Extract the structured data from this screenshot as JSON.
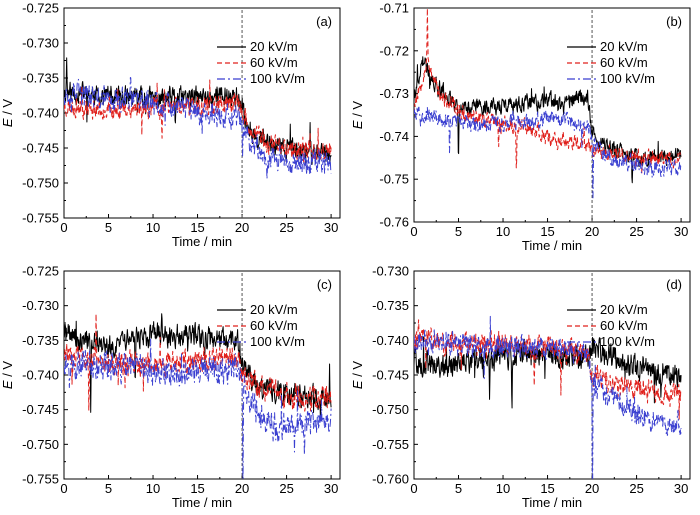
{
  "chart_data": [
    {
      "panel": "(a)",
      "type": "line",
      "xlabel": "Time / min",
      "ylabel": "E / V",
      "xlim": [
        0,
        31
      ],
      "ylim": [
        -0.755,
        -0.725
      ],
      "xticks": [
        0,
        5,
        10,
        15,
        20,
        25,
        30
      ],
      "xtick_labels": [
        "0",
        "5",
        "10",
        "15",
        "20",
        "25",
        "30"
      ],
      "yticks": [
        -0.755,
        -0.75,
        -0.745,
        -0.74,
        -0.735,
        -0.73,
        -0.725
      ],
      "ytick_labels": [
        "-0.755",
        "-0.750",
        "-0.745",
        "-0.740",
        "-0.735",
        "-0.730",
        "-0.725"
      ],
      "marker_line_x": 20,
      "legend": [
        "20 kV/m",
        "60 kV/m",
        "100 kV/m"
      ],
      "series": [
        {
          "name": "20 kV/m",
          "color": "#000000",
          "dash": "",
          "seed": 11,
          "noise": 0.0014,
          "spikes": [
            [
              0.3,
              0.005
            ],
            [
              12.5,
              -0.004
            ],
            [
              17.2,
              0.003
            ]
          ],
          "knots": [
            [
              0,
              -0.737
            ],
            [
              5,
              -0.7375
            ],
            [
              10,
              -0.738
            ],
            [
              15,
              -0.7378
            ],
            [
              19.5,
              -0.7375
            ],
            [
              20,
              -0.74
            ],
            [
              21,
              -0.7425
            ],
            [
              23,
              -0.7445
            ],
            [
              27,
              -0.7455
            ],
            [
              30,
              -0.7458
            ]
          ]
        },
        {
          "name": "60 kV/m",
          "color": "#e0201c",
          "dash": "5,3",
          "seed": 23,
          "noise": 0.0013,
          "spikes": [
            [
              2.0,
              0.004
            ],
            [
              11.0,
              -0.004
            ]
          ],
          "knots": [
            [
              0,
              -0.739
            ],
            [
              5,
              -0.7395
            ],
            [
              10,
              -0.7392
            ],
            [
              15,
              -0.739
            ],
            [
              19.5,
              -0.7385
            ],
            [
              20,
              -0.74
            ],
            [
              21,
              -0.7425
            ],
            [
              23,
              -0.7445
            ],
            [
              27,
              -0.7455
            ],
            [
              30,
              -0.7452
            ]
          ]
        },
        {
          "name": "100 kV/m",
          "color": "#3a3fd0",
          "dash": "8,3,2,3",
          "seed": 37,
          "noise": 0.0016,
          "spikes": [
            [
              7.5,
              0.004
            ],
            [
              20.05,
              -0.006
            ],
            [
              22.8,
              -0.003
            ]
          ],
          "knots": [
            [
              0,
              -0.737
            ],
            [
              5,
              -0.738
            ],
            [
              10,
              -0.7385
            ],
            [
              15,
              -0.74
            ],
            [
              19.5,
              -0.741
            ],
            [
              20,
              -0.742
            ],
            [
              21,
              -0.744
            ],
            [
              23,
              -0.7465
            ],
            [
              27,
              -0.747
            ],
            [
              30,
              -0.7468
            ]
          ]
        }
      ]
    },
    {
      "panel": "(b)",
      "type": "line",
      "xlabel": "Time / min",
      "ylabel": "E / V",
      "xlim": [
        0,
        31
      ],
      "ylim": [
        -0.76,
        -0.71
      ],
      "xticks": [
        0,
        5,
        10,
        15,
        20,
        25,
        30
      ],
      "xtick_labels": [
        "0",
        "5",
        "10",
        "15",
        "20",
        "25",
        "30"
      ],
      "yticks": [
        -0.76,
        -0.75,
        -0.74,
        -0.73,
        -0.72,
        -0.71
      ],
      "ytick_labels": [
        "-0.76",
        "-0.75",
        "-0.74",
        "-0.73",
        "-0.72",
        "-0.71"
      ],
      "marker_line_x": 20,
      "legend": [
        "20 kV/m",
        "60 kV/m",
        "100 kV/m"
      ],
      "series": [
        {
          "name": "20 kV/m",
          "color": "#000000",
          "dash": "",
          "seed": 41,
          "noise": 0.0018,
          "spikes": [
            [
              5.0,
              -0.014
            ],
            [
              24.5,
              -0.01
            ]
          ],
          "knots": [
            [
              0,
              -0.731
            ],
            [
              1,
              -0.722
            ],
            [
              2,
              -0.727
            ],
            [
              5,
              -0.733
            ],
            [
              10,
              -0.733
            ],
            [
              15,
              -0.732
            ],
            [
              19.5,
              -0.731
            ],
            [
              20,
              -0.738
            ],
            [
              21,
              -0.742
            ],
            [
              25,
              -0.745
            ],
            [
              30,
              -0.7445
            ]
          ]
        },
        {
          "name": "60 kV/m",
          "color": "#e0201c",
          "dash": "5,3",
          "seed": 53,
          "noise": 0.0017,
          "spikes": [
            [
              1.5,
              0.012
            ],
            [
              9.5,
              -0.009
            ],
            [
              11.5,
              -0.01
            ]
          ],
          "knots": [
            [
              0,
              -0.733
            ],
            [
              1.5,
              -0.722
            ],
            [
              3,
              -0.731
            ],
            [
              6,
              -0.735
            ],
            [
              10,
              -0.737
            ],
            [
              13,
              -0.738
            ],
            [
              16,
              -0.741
            ],
            [
              19.5,
              -0.742
            ],
            [
              20,
              -0.743
            ],
            [
              25,
              -0.745
            ],
            [
              30,
              -0.7455
            ]
          ]
        },
        {
          "name": "100 kV/m",
          "color": "#3a3fd0",
          "dash": "8,3,2,3",
          "seed": 67,
          "noise": 0.0017,
          "spikes": [
            [
              4.0,
              -0.008
            ],
            [
              20.1,
              -0.012
            ]
          ],
          "knots": [
            [
              0,
              -0.734
            ],
            [
              3,
              -0.736
            ],
            [
              7,
              -0.737
            ],
            [
              12,
              -0.7365
            ],
            [
              16,
              -0.736
            ],
            [
              19.5,
              -0.7375
            ],
            [
              20,
              -0.741
            ],
            [
              22,
              -0.745
            ],
            [
              26,
              -0.747
            ],
            [
              30,
              -0.7475
            ]
          ]
        }
      ]
    },
    {
      "panel": "(c)",
      "type": "line",
      "xlabel": "Time / min",
      "ylabel": "E / V",
      "xlim": [
        0,
        31
      ],
      "ylim": [
        -0.755,
        -0.725
      ],
      "xticks": [
        0,
        5,
        10,
        15,
        20,
        25,
        30
      ],
      "xtick_labels": [
        "0",
        "5",
        "10",
        "15",
        "20",
        "25",
        "30"
      ],
      "yticks": [
        -0.755,
        -0.75,
        -0.745,
        -0.74,
        -0.735,
        -0.73,
        -0.725
      ],
      "ytick_labels": [
        "-0.755",
        "-0.750",
        "-0.745",
        "-0.740",
        "-0.735",
        "-0.730",
        "-0.725"
      ],
      "marker_line_x": 20,
      "legend": [
        "20 kV/m",
        "60 kV/m",
        "100 kV/m"
      ],
      "series": [
        {
          "name": "20 kV/m",
          "color": "#000000",
          "dash": "",
          "seed": 71,
          "noise": 0.0015,
          "spikes": [
            [
              3.0,
              -0.011
            ],
            [
              8.0,
              -0.008
            ],
            [
              11.0,
              0.004
            ]
          ],
          "knots": [
            [
              0,
              -0.734
            ],
            [
              5,
              -0.736
            ],
            [
              10,
              -0.734
            ],
            [
              15,
              -0.7345
            ],
            [
              19.5,
              -0.735
            ],
            [
              20,
              -0.739
            ],
            [
              22,
              -0.742
            ],
            [
              26,
              -0.743
            ],
            [
              30,
              -0.743
            ]
          ]
        },
        {
          "name": "60 kV/m",
          "color": "#e0201c",
          "dash": "5,3",
          "seed": 83,
          "noise": 0.0016,
          "spikes": [
            [
              2.8,
              -0.009
            ],
            [
              3.6,
              0.007
            ]
          ],
          "knots": [
            [
              0,
              -0.737
            ],
            [
              5,
              -0.738
            ],
            [
              10,
              -0.7385
            ],
            [
              15,
              -0.738
            ],
            [
              19.5,
              -0.7375
            ],
            [
              20,
              -0.74
            ],
            [
              22,
              -0.742
            ],
            [
              26,
              -0.743
            ],
            [
              30,
              -0.7435
            ]
          ]
        },
        {
          "name": "100 kV/m",
          "color": "#3a3fd0",
          "dash": "8,3,2,3",
          "seed": 97,
          "noise": 0.0018,
          "spikes": [
            [
              20.1,
              -0.016
            ],
            [
              27.0,
              -0.005
            ]
          ],
          "knots": [
            [
              0,
              -0.738
            ],
            [
              5,
              -0.739
            ],
            [
              10,
              -0.7395
            ],
            [
              15,
              -0.7395
            ],
            [
              19.5,
              -0.7395
            ],
            [
              20,
              -0.741
            ],
            [
              22,
              -0.746
            ],
            [
              24,
              -0.748
            ],
            [
              27,
              -0.7475
            ],
            [
              30,
              -0.7465
            ]
          ]
        }
      ]
    },
    {
      "panel": "(d)",
      "type": "line",
      "xlabel": "Time / min",
      "ylabel": "E / V",
      "xlim": [
        0,
        31
      ],
      "ylim": [
        -0.76,
        -0.73
      ],
      "xticks": [
        0,
        5,
        10,
        15,
        20,
        25,
        30
      ],
      "xtick_labels": [
        "0",
        "5",
        "10",
        "15",
        "20",
        "25",
        "30"
      ],
      "yticks": [
        -0.76,
        -0.755,
        -0.75,
        -0.745,
        -0.74,
        -0.735,
        -0.73
      ],
      "ytick_labels": [
        "-0.760",
        "-0.755",
        "-0.750",
        "-0.745",
        "-0.740",
        "-0.735",
        "-0.730"
      ],
      "marker_line_x": 20,
      "legend": [
        "20 kV/m",
        "60 kV/m",
        "100 kV/m"
      ],
      "series": [
        {
          "name": "20 kV/m",
          "color": "#000000",
          "dash": "",
          "seed": 101,
          "noise": 0.0017,
          "spikes": [
            [
              8.5,
              -0.007
            ],
            [
              11.0,
              -0.007
            ]
          ],
          "knots": [
            [
              0,
              -0.743
            ],
            [
              3,
              -0.744
            ],
            [
              6,
              -0.743
            ],
            [
              10,
              -0.742
            ],
            [
              15,
              -0.742
            ],
            [
              19.5,
              -0.7425
            ],
            [
              20,
              -0.741
            ],
            [
              22,
              -0.742
            ],
            [
              25,
              -0.744
            ],
            [
              28,
              -0.7445
            ],
            [
              30,
              -0.745
            ]
          ]
        },
        {
          "name": "60 kV/m",
          "color": "#e0201c",
          "dash": "5,3",
          "seed": 113,
          "noise": 0.0015,
          "spikes": [
            [
              0.5,
              0.005
            ],
            [
              13.5,
              -0.007
            ],
            [
              16.5,
              -0.006
            ]
          ],
          "knots": [
            [
              0,
              -0.74
            ],
            [
              5,
              -0.7405
            ],
            [
              10,
              -0.7405
            ],
            [
              15,
              -0.741
            ],
            [
              19.5,
              -0.742
            ],
            [
              20,
              -0.745
            ],
            [
              22,
              -0.746
            ],
            [
              25,
              -0.747
            ],
            [
              28,
              -0.7475
            ],
            [
              30,
              -0.748
            ]
          ]
        },
        {
          "name": "100 kV/m",
          "color": "#3a3fd0",
          "dash": "8,3,2,3",
          "seed": 127,
          "noise": 0.0015,
          "spikes": [
            [
              20.05,
              -0.018
            ]
          ],
          "knots": [
            [
              0,
              -0.74
            ],
            [
              5,
              -0.7405
            ],
            [
              10,
              -0.741
            ],
            [
              15,
              -0.741
            ],
            [
              19.5,
              -0.742
            ],
            [
              20,
              -0.746
            ],
            [
              22,
              -0.748
            ],
            [
              25,
              -0.751
            ],
            [
              28,
              -0.752
            ],
            [
              30,
              -0.752
            ]
          ]
        }
      ]
    }
  ]
}
